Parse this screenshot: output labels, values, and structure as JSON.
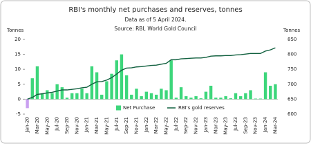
{
  "chart_data": {
    "type": "bar_line",
    "title": "RBI's monthly net purchases and reserves, tonnes",
    "subtitle": "Data as of 5 April 2024.",
    "source": "Source: RBI, World Gold Council",
    "y_label": "Tonnes",
    "y2_label": "Tonnes",
    "categories": [
      "Jan-20",
      null,
      "Mar-20",
      null,
      "May-20",
      null,
      "Jul-20",
      null,
      "Sep-20",
      null,
      "Nov-20",
      null,
      "Jan-21",
      null,
      "Mar-21",
      null,
      "May-21",
      null,
      "Jul-21",
      null,
      "Sep-21",
      null,
      "Nov-21",
      null,
      "Jan-22",
      null,
      "Mar-22",
      null,
      "May-22",
      null,
      "Jul-22",
      null,
      "Sep-22",
      null,
      "Nov-22",
      null,
      "Jan-23",
      null,
      "Mar-23",
      null,
      "May-23",
      null,
      "Jul-23",
      null,
      "Sep-23",
      null,
      "Nov-23",
      null,
      "Jan-24",
      null,
      "Mar-24"
    ],
    "series": [
      {
        "name": "Net Purchase",
        "type": "bar",
        "color": "#3dd67b",
        "negative_color": "#c9a0f0",
        "values": [
          -3,
          7,
          11,
          2,
          3,
          2,
          5,
          4,
          0.5,
          2,
          2,
          3.5,
          2,
          11,
          9,
          1.5,
          6,
          8.5,
          13,
          15,
          8,
          1.5,
          3.5,
          1,
          2.5,
          2,
          1.5,
          3.5,
          3,
          13,
          0.5,
          4,
          1,
          0.5,
          1,
          0.3,
          2.5,
          4.5,
          0.5,
          0.5,
          1,
          0.3,
          2,
          1,
          2,
          3,
          0.2,
          0.2,
          9,
          4.5,
          5
        ]
      },
      {
        "name": "RBI's gold reserves",
        "type": "line",
        "axis": "y2",
        "color": "#11603f",
        "values": [
          650,
          656,
          666,
          668,
          671,
          673,
          677,
          681,
          681,
          683,
          685,
          688,
          690,
          700,
          708,
          709,
          714,
          722,
          734,
          747,
          754,
          755,
          758,
          759,
          761,
          763,
          764,
          767,
          770,
          782,
          782,
          785,
          786,
          787,
          788,
          788,
          790,
          794,
          795,
          795,
          796,
          796,
          798,
          799,
          801,
          803,
          803,
          803,
          811,
          815,
          822
        ]
      }
    ],
    "ylim": [
      -5,
      20
    ],
    "yticks": [
      -5,
      0,
      5,
      10,
      15,
      20
    ],
    "y2lim": [
      600,
      850
    ],
    "y2ticks": [
      600,
      650,
      700,
      750,
      800,
      850
    ]
  }
}
